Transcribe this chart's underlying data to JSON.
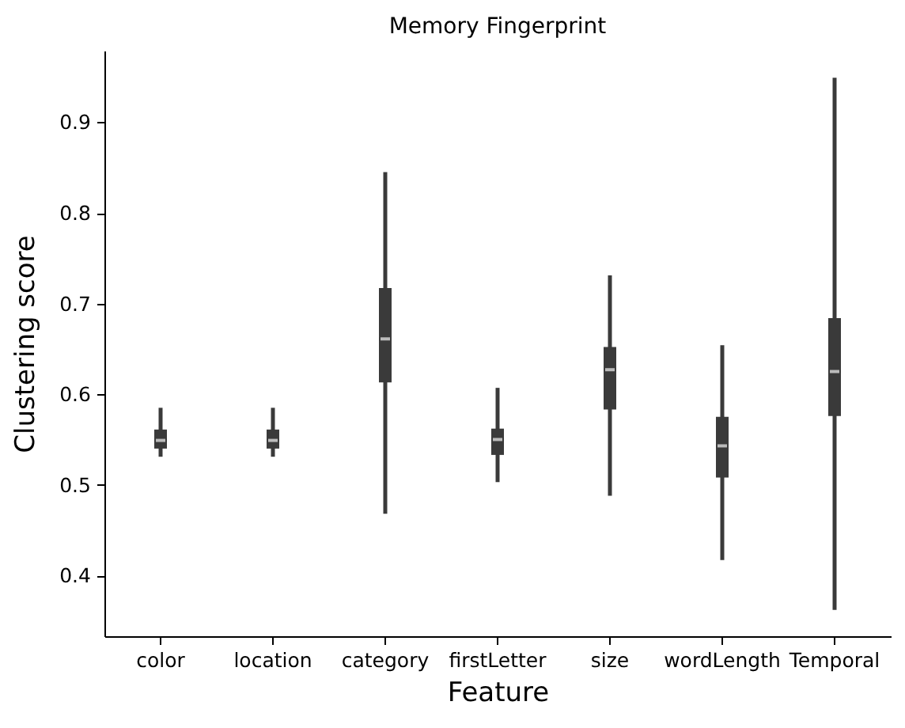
{
  "chart_data": {
    "type": "box",
    "title": "Memory Fingerprint",
    "xlabel": "Feature",
    "ylabel": "Clustering score",
    "categories": [
      "color",
      "location",
      "category",
      "firstLetter",
      "size",
      "wordLength",
      "Temporal"
    ],
    "series": [
      {
        "color": "#3a3a3a",
        "boxes": [
          {
            "low": 0.531,
            "q1": 0.54,
            "median": 0.549,
            "q3": 0.561,
            "high": 0.585
          },
          {
            "low": 0.531,
            "q1": 0.54,
            "median": 0.549,
            "q3": 0.561,
            "high": 0.585
          },
          {
            "low": 0.468,
            "q1": 0.613,
            "median": 0.661,
            "q3": 0.717,
            "high": 0.845
          },
          {
            "low": 0.503,
            "q1": 0.533,
            "median": 0.55,
            "q3": 0.562,
            "high": 0.607
          },
          {
            "low": 0.488,
            "q1": 0.583,
            "median": 0.627,
            "q3": 0.652,
            "high": 0.731
          },
          {
            "low": 0.417,
            "q1": 0.508,
            "median": 0.543,
            "q3": 0.575,
            "high": 0.654
          },
          {
            "low": 0.362,
            "q1": 0.576,
            "median": 0.625,
            "q3": 0.684,
            "high": 0.949
          }
        ]
      }
    ],
    "ylim": [
      0.333,
      0.979
    ],
    "yticks": [
      0.4,
      0.5,
      0.6,
      0.7,
      0.8,
      0.9
    ]
  }
}
